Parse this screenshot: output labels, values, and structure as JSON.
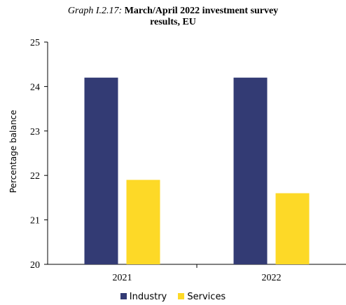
{
  "title": {
    "prefix": "Graph I.2.17:",
    "line1": "March/April 2022 investment survey",
    "line2": "results, EU"
  },
  "chart_data": {
    "type": "bar",
    "categories": [
      "2021",
      "2022"
    ],
    "series": [
      {
        "name": "Industry",
        "color": "#333b74",
        "values": [
          24.2,
          24.2
        ]
      },
      {
        "name": "Services",
        "color": "#fdd927",
        "values": [
          21.9,
          21.6
        ]
      }
    ],
    "ylabel": "Percentage balance",
    "ylim": [
      20,
      25
    ],
    "yticks": [
      20,
      21,
      22,
      23,
      24,
      25
    ],
    "legend_position": "bottom"
  }
}
